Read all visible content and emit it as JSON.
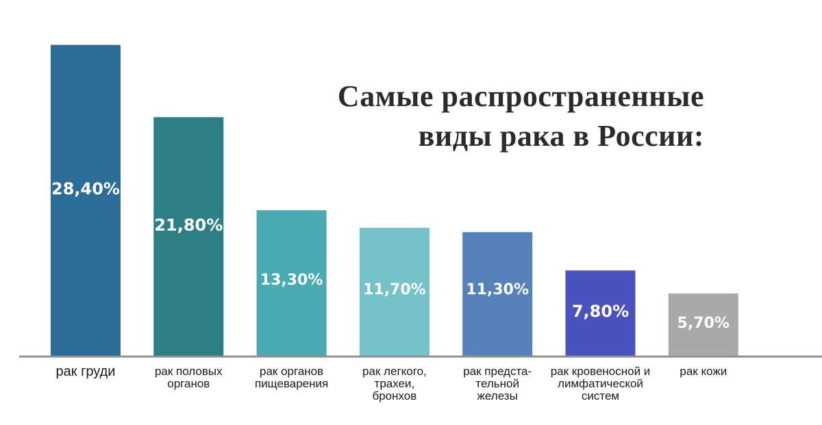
{
  "title": {
    "line1": "Самые распространенные",
    "line2": "виды рака в России:"
  },
  "chart_data": {
    "type": "bar",
    "title": "Самые распространенные виды рака в России:",
    "xlabel": "",
    "ylabel": "",
    "unit": "%",
    "ylim": [
      0,
      30
    ],
    "grid": false,
    "legend": "none",
    "categories": [
      [
        "рак груди"
      ],
      [
        "рак половых",
        "органов"
      ],
      [
        "рак органов",
        "пищеварения"
      ],
      [
        "рак легкого,",
        "трахеи,",
        "бронхов"
      ],
      [
        "рак предста-",
        "тельной",
        "железы"
      ],
      [
        "рак кровеносной и",
        "лимфатической",
        "систем"
      ],
      [
        "рак кожи"
      ]
    ],
    "values": [
      28.4,
      21.8,
      13.3,
      11.7,
      11.3,
      7.8,
      5.7
    ],
    "value_labels": [
      "28,40%",
      "21,80%",
      "13,30%",
      "11,70%",
      "11,30%",
      "7,80%",
      "5,70%"
    ],
    "colors": [
      "#2b6d96",
      "#2d7f86",
      "#49aab2",
      "#73c3c8",
      "#5681b8",
      "#4a52c0",
      "#a9a9a9"
    ],
    "axis_color": "#8f8f8f"
  }
}
